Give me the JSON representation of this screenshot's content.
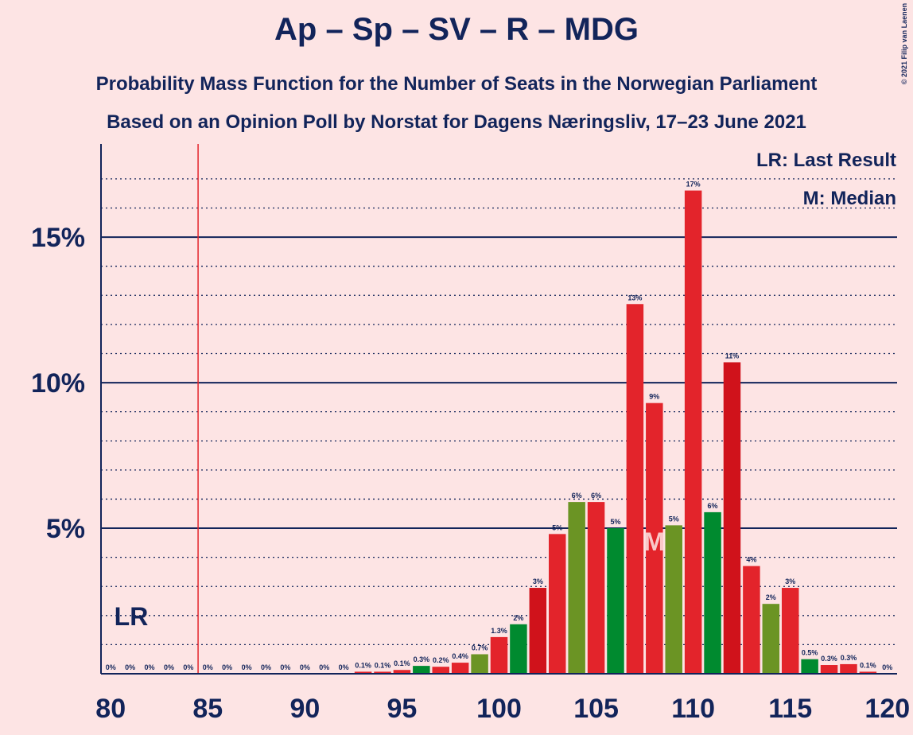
{
  "chart_data": {
    "type": "bar",
    "title": "Ap – Sp – SV – R – MDG",
    "subtitle": "Probability Mass Function for the Number of Seats in the Norwegian Parliament",
    "subtitle2": "Based on an Opinion Poll by Norstat for Dagens Næringsliv, 17–23 June 2021",
    "copyright": "© 2021 Filip van Laenen",
    "legend": [
      "LR: Last Result",
      "M: Median"
    ],
    "last_result": 85,
    "last_result_label": "LR",
    "median": 108,
    "median_label": "M",
    "x": [
      80,
      81,
      82,
      83,
      84,
      85,
      86,
      87,
      88,
      89,
      90,
      91,
      92,
      93,
      94,
      95,
      96,
      97,
      98,
      99,
      100,
      101,
      102,
      103,
      104,
      105,
      106,
      107,
      108,
      109,
      110,
      111,
      112,
      113,
      114,
      115,
      116,
      117,
      118,
      119,
      120
    ],
    "values": [
      0,
      0,
      0,
      0,
      0,
      0,
      0,
      0,
      0,
      0,
      0,
      0,
      0,
      0.07,
      0.07,
      0.13,
      0.27,
      0.24,
      0.38,
      0.67,
      1.26,
      1.7,
      2.95,
      4.8,
      5.9,
      5.9,
      5.0,
      12.7,
      9.3,
      5.1,
      16.6,
      5.55,
      10.7,
      3.7,
      2.4,
      2.95,
      0.5,
      0.3,
      0.33,
      0.07,
      0
    ],
    "value_labels": [
      "0%",
      "0%",
      "0%",
      "0%",
      "0%",
      "0%",
      "0%",
      "0%",
      "0%",
      "0%",
      "0%",
      "0%",
      "0%",
      "0.1%",
      "0.1%",
      "0.1%",
      "0.3%",
      "0.2%",
      "0.4%",
      "0.7%",
      "1.3%",
      "2%",
      "3%",
      "5%",
      "6%",
      "6%",
      "5%",
      "13%",
      "9%",
      "5%",
      "17%",
      "6%",
      "11%",
      "4%",
      "2%",
      "3%",
      "0.5%",
      "0.3%",
      "0.3%",
      "0.1%",
      "0%"
    ],
    "colors": [
      "#e3242b",
      "#e3242b",
      "#e3242b",
      "#e3242b",
      "#e3242b",
      "#e3242b",
      "#e3242b",
      "#e3242b",
      "#e3242b",
      "#e3242b",
      "#e3242b",
      "#e3242b",
      "#e3242b",
      "#e3242b",
      "#e3242b",
      "#e3242b",
      "#008a2f",
      "#e3242b",
      "#e3242b",
      "#6b9424",
      "#e3242b",
      "#008a2f",
      "#d0121b",
      "#e3242b",
      "#6b9424",
      "#e3242b",
      "#008a2f",
      "#e3242b",
      "#e3242b",
      "#6b9424",
      "#e3242b",
      "#008a2f",
      "#d0121b",
      "#e3242b",
      "#6b9424",
      "#e3242b",
      "#008a2f",
      "#e3242b",
      "#e3242b",
      "#e3242b",
      "#e3242b"
    ],
    "xlim": [
      79.5,
      120.5
    ],
    "xticks": [
      80,
      85,
      90,
      95,
      100,
      105,
      110,
      115,
      120
    ],
    "ylim": [
      0,
      18.2
    ],
    "yticks": [
      {
        "value": 5,
        "label": "5%"
      },
      {
        "value": 10,
        "label": "10%"
      },
      {
        "value": 15,
        "label": "15%"
      }
    ],
    "minor_yticks": [
      1,
      2,
      3,
      4,
      6,
      7,
      8,
      9,
      11,
      12,
      13,
      14,
      16,
      17
    ],
    "grid": true
  }
}
